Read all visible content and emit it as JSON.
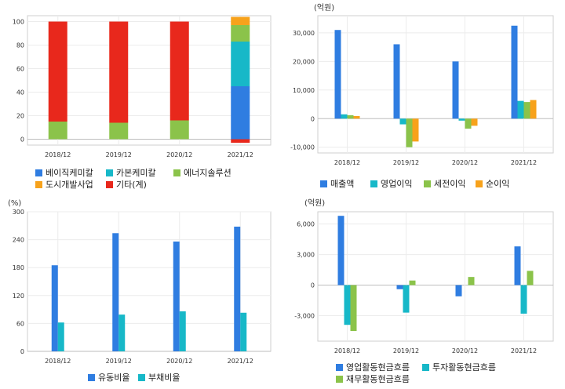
{
  "chart_data": [
    {
      "type": "bar",
      "stacked": true,
      "unit_label": "",
      "categories": [
        "2018/12",
        "2019/12",
        "2020/12",
        "2021/12"
      ],
      "ylim": [
        -5,
        105
      ],
      "yticks": [
        0,
        20,
        40,
        60,
        80,
        100
      ],
      "grid": true,
      "legend_position": "bottom",
      "series": [
        {
          "name": "베이직케미칼",
          "color": "#2f7de1",
          "values": [
            0,
            0,
            0,
            45
          ]
        },
        {
          "name": "카본케미칼",
          "color": "#17b8c8",
          "values": [
            0,
            0,
            0,
            38
          ]
        },
        {
          "name": "에너지솔루션",
          "color": "#8bc34a",
          "values": [
            15,
            14,
            16,
            14
          ]
        },
        {
          "name": "도시개발사업",
          "color": "#f7a21b",
          "values": [
            0,
            0,
            0,
            7
          ]
        },
        {
          "name": "기타(계)",
          "color": "#e8281c",
          "values": [
            85,
            86,
            84,
            -3
          ]
        }
      ]
    },
    {
      "type": "bar",
      "unit_label": "(억원)",
      "categories": [
        "2018/12",
        "2019/12",
        "2020/12",
        "2021/12"
      ],
      "ylim": [
        -12000,
        36000
      ],
      "yticks": [
        -10000,
        0,
        10000,
        20000,
        30000
      ],
      "ytick_labels": [
        "-10,000",
        "0",
        "10,000",
        "20,000",
        "30,000"
      ],
      "grid": true,
      "legend_position": "bottom",
      "series": [
        {
          "name": "매출액",
          "color": "#2f7de1",
          "values": [
            31000,
            26000,
            20000,
            32500
          ]
        },
        {
          "name": "영업이익",
          "color": "#17b8c8",
          "values": [
            1500,
            -2000,
            -700,
            6200
          ]
        },
        {
          "name": "세전이익",
          "color": "#8bc34a",
          "values": [
            1200,
            -10000,
            -3500,
            5800
          ]
        },
        {
          "name": "순이익",
          "color": "#f7a21b",
          "values": [
            900,
            -8000,
            -2500,
            6500
          ]
        }
      ]
    },
    {
      "type": "bar",
      "unit_label": "(%)",
      "categories": [
        "2018/12",
        "2019/12",
        "2020/12",
        "2021/12"
      ],
      "ylim": [
        0,
        300
      ],
      "yticks": [
        0,
        60,
        120,
        180,
        240,
        300
      ],
      "grid": true,
      "legend_position": "bottom",
      "series": [
        {
          "name": "유동비율",
          "color": "#2f7de1",
          "values": [
            185,
            254,
            236,
            268
          ]
        },
        {
          "name": "부채비율",
          "color": "#17b8c8",
          "values": [
            62,
            79,
            86,
            83
          ]
        }
      ]
    },
    {
      "type": "bar",
      "unit_label": "(억원)",
      "categories": [
        "2018/12",
        "2019/12",
        "2020/12",
        "2021/12"
      ],
      "ylim": [
        -5500,
        7200
      ],
      "yticks": [
        -3000,
        0,
        3000,
        6000
      ],
      "ytick_labels": [
        "-3,000",
        "0",
        "3,000",
        "6,000"
      ],
      "grid": true,
      "legend_position": "bottom",
      "series": [
        {
          "name": "영업활동현금흐름",
          "color": "#2f7de1",
          "values": [
            6800,
            -400,
            -1100,
            3800
          ]
        },
        {
          "name": "투자활동현금흐름",
          "color": "#17b8c8",
          "values": [
            -3900,
            -2700,
            0,
            -2800
          ]
        },
        {
          "name": "재무활동현금흐름",
          "color": "#8bc34a",
          "values": [
            -4500,
            450,
            800,
            1400
          ]
        }
      ]
    }
  ]
}
